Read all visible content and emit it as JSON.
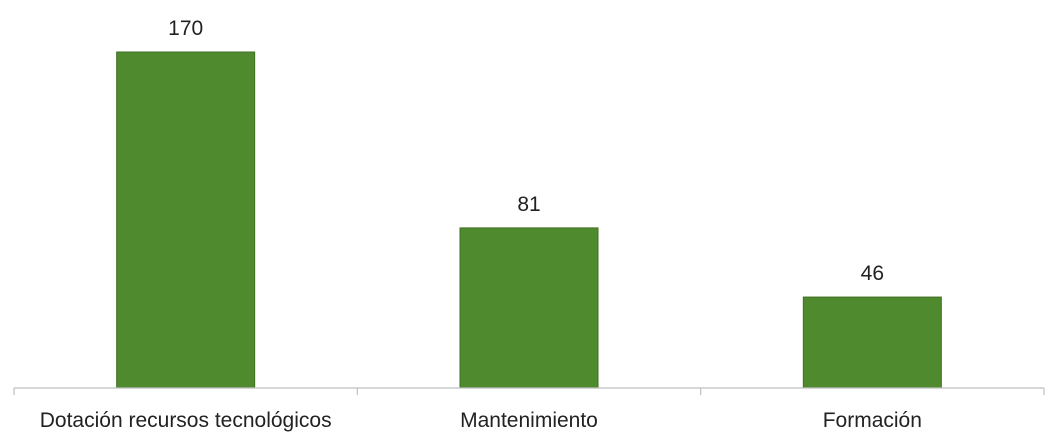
{
  "chart_data": {
    "type": "bar",
    "categories": [
      "Dotación recursos tecnológicos",
      "Mantenimiento",
      "Formación"
    ],
    "values": [
      170,
      81,
      46
    ],
    "data_labels": [
      "170",
      "81",
      "46"
    ],
    "title": "",
    "xlabel": "",
    "ylabel": "",
    "ylim": [
      0,
      170
    ],
    "grid": false,
    "legend": "none",
    "bar_color": "#4f8a2e",
    "axis_color": "#bfbfbf"
  }
}
